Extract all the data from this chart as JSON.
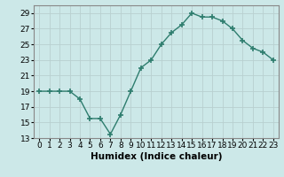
{
  "x": [
    0,
    1,
    2,
    3,
    4,
    5,
    6,
    7,
    8,
    9,
    10,
    11,
    12,
    13,
    14,
    15,
    16,
    17,
    18,
    19,
    20,
    21,
    22,
    23
  ],
  "y": [
    19,
    19,
    19,
    19,
    18,
    15.5,
    15.5,
    13.5,
    16,
    19,
    22,
    23,
    25,
    26.5,
    27.5,
    29,
    28.5,
    28.5,
    28,
    27,
    25.5,
    24.5,
    24,
    23
  ],
  "line_color": "#2e7d6e",
  "marker": "+",
  "marker_size": 4,
  "marker_lw": 1.2,
  "bg_color": "#cce8e8",
  "grid_color_major": "#b8d0d0",
  "grid_color_minor": "#b8d0d0",
  "xlabel": "Humidex (Indice chaleur)",
  "xlim": [
    -0.5,
    23.5
  ],
  "ylim": [
    13,
    30
  ],
  "yticks": [
    13,
    15,
    17,
    19,
    21,
    23,
    25,
    27,
    29
  ],
  "xticks": [
    0,
    1,
    2,
    3,
    4,
    5,
    6,
    7,
    8,
    9,
    10,
    11,
    12,
    13,
    14,
    15,
    16,
    17,
    18,
    19,
    20,
    21,
    22,
    23
  ],
  "xtick_labels": [
    "0",
    "1",
    "2",
    "3",
    "4",
    "5",
    "6",
    "7",
    "8",
    "9",
    "10",
    "11",
    "12",
    "13",
    "14",
    "15",
    "16",
    "17",
    "18",
    "19",
    "20",
    "21",
    "22",
    "23"
  ],
  "ytick_labels": [
    "13",
    "15",
    "17",
    "19",
    "21",
    "23",
    "25",
    "27",
    "29"
  ],
  "linewidth": 1.0,
  "font_size": 6.5,
  "xlabel_font_size": 7.5
}
